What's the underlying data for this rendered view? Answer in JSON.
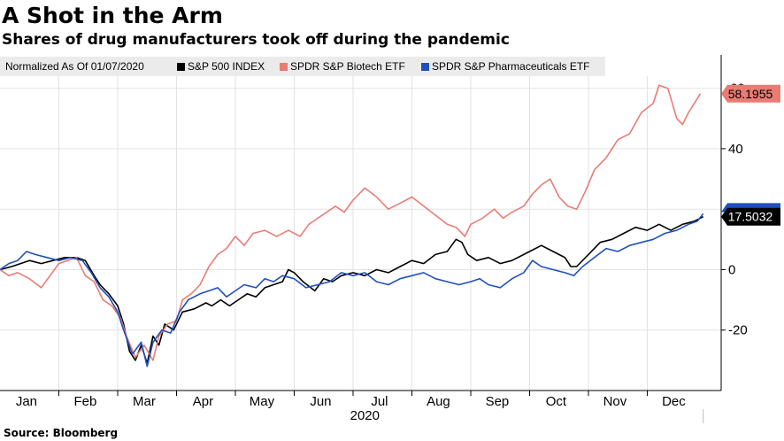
{
  "title": "A Shot in the Arm",
  "subtitle": "Shares of drug manufacturers took off during the pandemic",
  "source": "Source: Bloomberg",
  "legend": {
    "normalized_label": "Normalized As Of 01/07/2020"
  },
  "colors": {
    "sp500": "#000000",
    "biotech": "#e87c73",
    "pharma": "#1f4fbf",
    "grid": "#e2e2e2"
  },
  "chart_data": {
    "type": "line",
    "title": "A Shot in the Arm",
    "subtitle": "Shares of drug manufacturers took off during the pandemic",
    "xlabel": "2020",
    "ylabel": "",
    "x_domain": [
      0,
      12.15
    ],
    "ylim": [
      -40,
      64
    ],
    "yticks": [
      -20,
      0,
      40
    ],
    "ytick_labels": [
      "-20",
      "0",
      "40"
    ],
    "partial_top_tick": "60",
    "x_months": [
      "Jan",
      "Feb",
      "Mar",
      "Apr",
      "May",
      "Jun",
      "Jul",
      "Aug",
      "Sep",
      "Oct",
      "Nov",
      "Dec"
    ],
    "x_year": "2020",
    "series": [
      {
        "key": "sp500",
        "name": "S&P 500 INDEX",
        "color": "#000000",
        "end_value": "17.5032",
        "points": [
          [
            0,
            0
          ],
          [
            0.2,
            1
          ],
          [
            0.35,
            2
          ],
          [
            0.5,
            3
          ],
          [
            0.7,
            2
          ],
          [
            0.9,
            3
          ],
          [
            1.1,
            4
          ],
          [
            1.3,
            4
          ],
          [
            1.45,
            3
          ],
          [
            1.6,
            -2
          ],
          [
            1.7,
            -5
          ],
          [
            1.85,
            -8
          ],
          [
            2,
            -12
          ],
          [
            2.1,
            -18
          ],
          [
            2.2,
            -27
          ],
          [
            2.3,
            -30
          ],
          [
            2.4,
            -25
          ],
          [
            2.5,
            -31
          ],
          [
            2.6,
            -22
          ],
          [
            2.7,
            -25
          ],
          [
            2.8,
            -18
          ],
          [
            2.95,
            -20
          ],
          [
            3.1,
            -14
          ],
          [
            3.3,
            -13
          ],
          [
            3.5,
            -11
          ],
          [
            3.6,
            -12
          ],
          [
            3.75,
            -10
          ],
          [
            3.9,
            -12
          ],
          [
            4.05,
            -10
          ],
          [
            4.2,
            -8
          ],
          [
            4.35,
            -9
          ],
          [
            4.5,
            -6
          ],
          [
            4.65,
            -5
          ],
          [
            4.8,
            -4
          ],
          [
            4.9,
            0
          ],
          [
            5.0,
            -1
          ],
          [
            5.15,
            -4
          ],
          [
            5.35,
            -7
          ],
          [
            5.5,
            -3
          ],
          [
            5.65,
            -4
          ],
          [
            5.8,
            -2
          ],
          [
            6.0,
            -1
          ],
          [
            6.2,
            -2
          ],
          [
            6.4,
            0
          ],
          [
            6.6,
            -1
          ],
          [
            6.8,
            1
          ],
          [
            7.0,
            3
          ],
          [
            7.2,
            2
          ],
          [
            7.4,
            5
          ],
          [
            7.6,
            6
          ],
          [
            7.75,
            10
          ],
          [
            7.85,
            9
          ],
          [
            7.95,
            5
          ],
          [
            8.1,
            3
          ],
          [
            8.3,
            4
          ],
          [
            8.5,
            2
          ],
          [
            8.7,
            3
          ],
          [
            9.0,
            6
          ],
          [
            9.2,
            8
          ],
          [
            9.4,
            6
          ],
          [
            9.6,
            4
          ],
          [
            9.7,
            1
          ],
          [
            9.8,
            1
          ],
          [
            10.0,
            5
          ],
          [
            10.2,
            9
          ],
          [
            10.4,
            10
          ],
          [
            10.6,
            12
          ],
          [
            10.8,
            14
          ],
          [
            11.0,
            13
          ],
          [
            11.2,
            15
          ],
          [
            11.4,
            13
          ],
          [
            11.6,
            15
          ],
          [
            11.8,
            16
          ],
          [
            11.95,
            17.5
          ]
        ]
      },
      {
        "key": "biotech",
        "name": "SPDR S&P Biotech ETF",
        "color": "#e87c73",
        "end_value": "58.1955",
        "points": [
          [
            0,
            0
          ],
          [
            0.15,
            -2
          ],
          [
            0.3,
            -1
          ],
          [
            0.5,
            -3
          ],
          [
            0.7,
            -6
          ],
          [
            0.85,
            -2
          ],
          [
            1.0,
            2
          ],
          [
            1.15,
            3
          ],
          [
            1.3,
            4
          ],
          [
            1.45,
            -2
          ],
          [
            1.6,
            -4
          ],
          [
            1.75,
            -10
          ],
          [
            1.9,
            -12
          ],
          [
            2.05,
            -16
          ],
          [
            2.15,
            -22
          ],
          [
            2.3,
            -29
          ],
          [
            2.45,
            -25
          ],
          [
            2.6,
            -30
          ],
          [
            2.7,
            -22
          ],
          [
            2.85,
            -18
          ],
          [
            3.0,
            -17
          ],
          [
            3.1,
            -10
          ],
          [
            3.25,
            -8
          ],
          [
            3.4,
            -5
          ],
          [
            3.55,
            1
          ],
          [
            3.7,
            5
          ],
          [
            3.85,
            7
          ],
          [
            4.0,
            11
          ],
          [
            4.15,
            8
          ],
          [
            4.3,
            12
          ],
          [
            4.5,
            13
          ],
          [
            4.7,
            11
          ],
          [
            4.9,
            13
          ],
          [
            5.1,
            11
          ],
          [
            5.25,
            15
          ],
          [
            5.4,
            17
          ],
          [
            5.55,
            19
          ],
          [
            5.7,
            21
          ],
          [
            5.85,
            19
          ],
          [
            6.0,
            23
          ],
          [
            6.2,
            27
          ],
          [
            6.4,
            24
          ],
          [
            6.6,
            20
          ],
          [
            6.8,
            22
          ],
          [
            7.0,
            24
          ],
          [
            7.2,
            21
          ],
          [
            7.4,
            18
          ],
          [
            7.6,
            15
          ],
          [
            7.75,
            14
          ],
          [
            7.9,
            11
          ],
          [
            8.0,
            15
          ],
          [
            8.2,
            17
          ],
          [
            8.4,
            20
          ],
          [
            8.55,
            17
          ],
          [
            8.7,
            19
          ],
          [
            8.9,
            21
          ],
          [
            9.05,
            25
          ],
          [
            9.2,
            28
          ],
          [
            9.35,
            30
          ],
          [
            9.5,
            24
          ],
          [
            9.65,
            21
          ],
          [
            9.8,
            20
          ],
          [
            9.95,
            26
          ],
          [
            10.1,
            33
          ],
          [
            10.3,
            37
          ],
          [
            10.5,
            43
          ],
          [
            10.7,
            45
          ],
          [
            10.9,
            52
          ],
          [
            11.1,
            55
          ],
          [
            11.2,
            61
          ],
          [
            11.35,
            60
          ],
          [
            11.5,
            50
          ],
          [
            11.6,
            48
          ],
          [
            11.7,
            52
          ],
          [
            11.8,
            55
          ],
          [
            11.9,
            58.2
          ]
        ]
      },
      {
        "key": "pharma",
        "name": "SPDR S&P Pharmaceuticals ETF",
        "color": "#1f4fbf",
        "end_value": "",
        "points": [
          [
            0,
            0
          ],
          [
            0.15,
            2
          ],
          [
            0.3,
            3
          ],
          [
            0.45,
            6
          ],
          [
            0.6,
            5
          ],
          [
            0.8,
            4
          ],
          [
            1.0,
            3
          ],
          [
            1.2,
            4
          ],
          [
            1.4,
            3
          ],
          [
            1.55,
            -1
          ],
          [
            1.7,
            -6
          ],
          [
            1.85,
            -9
          ],
          [
            2.0,
            -14
          ],
          [
            2.1,
            -20
          ],
          [
            2.25,
            -28
          ],
          [
            2.4,
            -24
          ],
          [
            2.5,
            -32
          ],
          [
            2.6,
            -24
          ],
          [
            2.75,
            -20
          ],
          [
            2.9,
            -21
          ],
          [
            3.05,
            -14
          ],
          [
            3.2,
            -10
          ],
          [
            3.4,
            -8
          ],
          [
            3.55,
            -7
          ],
          [
            3.7,
            -6
          ],
          [
            3.85,
            -9
          ],
          [
            4.0,
            -7
          ],
          [
            4.15,
            -5
          ],
          [
            4.35,
            -6
          ],
          [
            4.5,
            -3
          ],
          [
            4.65,
            -4
          ],
          [
            4.8,
            -2
          ],
          [
            5.0,
            -3
          ],
          [
            5.2,
            -6
          ],
          [
            5.4,
            -5
          ],
          [
            5.6,
            -4
          ],
          [
            5.8,
            -1
          ],
          [
            6.0,
            -2
          ],
          [
            6.2,
            -1
          ],
          [
            6.4,
            -4
          ],
          [
            6.6,
            -5
          ],
          [
            6.8,
            -3
          ],
          [
            7.0,
            -2
          ],
          [
            7.2,
            -1
          ],
          [
            7.4,
            -3
          ],
          [
            7.6,
            -4
          ],
          [
            7.8,
            -5
          ],
          [
            8.0,
            -4
          ],
          [
            8.15,
            -3
          ],
          [
            8.3,
            -5
          ],
          [
            8.5,
            -6
          ],
          [
            8.7,
            -3
          ],
          [
            8.9,
            -1
          ],
          [
            9.05,
            3
          ],
          [
            9.2,
            1
          ],
          [
            9.4,
            0
          ],
          [
            9.6,
            -1
          ],
          [
            9.75,
            -2
          ],
          [
            9.9,
            1
          ],
          [
            10.1,
            4
          ],
          [
            10.3,
            7
          ],
          [
            10.5,
            6
          ],
          [
            10.7,
            8
          ],
          [
            10.9,
            9
          ],
          [
            11.1,
            10
          ],
          [
            11.3,
            12
          ],
          [
            11.5,
            13
          ],
          [
            11.7,
            15
          ],
          [
            11.85,
            16
          ],
          [
            11.95,
            18.5
          ]
        ]
      }
    ]
  }
}
